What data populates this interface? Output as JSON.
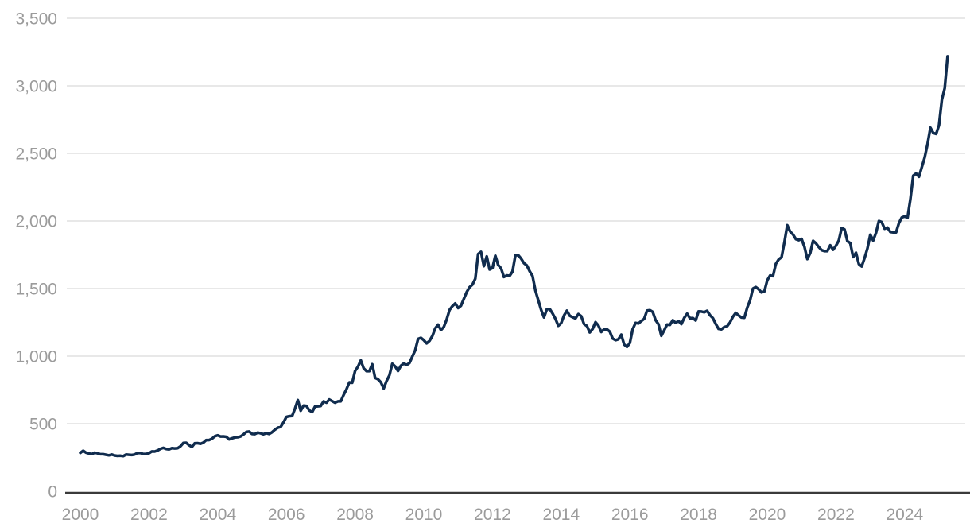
{
  "chart_data": {
    "type": "line",
    "title": "",
    "xlabel": "",
    "ylabel": "",
    "grid": "horizontal",
    "legend": "none",
    "ylim": [
      0,
      3500
    ],
    "xlim_years": [
      2000,
      2025.33
    ],
    "frequency": "monthly",
    "start_year": 2000,
    "start_month": 1,
    "colors": {
      "line": "#102c4e",
      "axis_line": "#3a3a3a",
      "grid_line": "#e8e8e8",
      "tick_label": "#9b9b9b",
      "background": "#ffffff"
    },
    "y_ticks": [
      {
        "value": 0,
        "label": "0"
      },
      {
        "value": 500,
        "label": "500"
      },
      {
        "value": 1000,
        "label": "1,000"
      },
      {
        "value": 1500,
        "label": "1,500"
      },
      {
        "value": 2000,
        "label": "2,000"
      },
      {
        "value": 2500,
        "label": "2,500"
      },
      {
        "value": 3000,
        "label": "3,000"
      },
      {
        "value": 3500,
        "label": "3,500"
      }
    ],
    "x_ticks": [
      {
        "year": 2000,
        "label": "2000"
      },
      {
        "year": 2002,
        "label": "2002"
      },
      {
        "year": 2004,
        "label": "2004"
      },
      {
        "year": 2006,
        "label": "2006"
      },
      {
        "year": 2008,
        "label": "2008"
      },
      {
        "year": 2010,
        "label": "2010"
      },
      {
        "year": 2012,
        "label": "2012"
      },
      {
        "year": 2014,
        "label": "2014"
      },
      {
        "year": 2016,
        "label": "2016"
      },
      {
        "year": 2018,
        "label": "2018"
      },
      {
        "year": 2020,
        "label": "2020"
      },
      {
        "year": 2022,
        "label": "2022"
      },
      {
        "year": 2024,
        "label": "2024"
      }
    ],
    "values": [
      284,
      300,
      286,
      280,
      275,
      286,
      281,
      274,
      274,
      270,
      266,
      272,
      265,
      262,
      263,
      260,
      272,
      270,
      268,
      272,
      284,
      283,
      276,
      276,
      281,
      295,
      294,
      302,
      314,
      321,
      313,
      310,
      319,
      317,
      319,
      333,
      357,
      359,
      341,
      328,
      355,
      356,
      351,
      360,
      379,
      379,
      389,
      407,
      414,
      405,
      406,
      403,
      384,
      392,
      398,
      400,
      405,
      420,
      439,
      442,
      424,
      423,
      434,
      429,
      422,
      430,
      424,
      437,
      456,
      470,
      476,
      510,
      550,
      555,
      557,
      611,
      675,
      596,
      634,
      632,
      598,
      586,
      627,
      629,
      631,
      665,
      655,
      679,
      667,
      655,
      665,
      665,
      713,
      755,
      806,
      803,
      890,
      922,
      968,
      910,
      889,
      889,
      940,
      839,
      829,
      807,
      761,
      816,
      858,
      943,
      924,
      890,
      929,
      946,
      934,
      949,
      997,
      1043,
      1127,
      1135,
      1118,
      1095,
      1113,
      1149,
      1205,
      1233,
      1193,
      1216,
      1271,
      1342,
      1370,
      1390,
      1356,
      1373,
      1424,
      1474,
      1510,
      1529,
      1573,
      1756,
      1772,
      1666,
      1738,
      1641,
      1652,
      1743,
      1674,
      1650,
      1586,
      1597,
      1594,
      1626,
      1745,
      1747,
      1722,
      1688,
      1671,
      1628,
      1593,
      1485,
      1414,
      1343,
      1287,
      1347,
      1349,
      1316,
      1276,
      1225,
      1244,
      1301,
      1336,
      1299,
      1288,
      1279,
      1311,
      1296,
      1237,
      1223,
      1176,
      1201,
      1251,
      1227,
      1179,
      1198,
      1199,
      1181,
      1130,
      1118,
      1125,
      1159,
      1086,
      1068,
      1097,
      1200,
      1246,
      1242,
      1260,
      1276,
      1337,
      1340,
      1327,
      1266,
      1236,
      1151,
      1192,
      1234,
      1231,
      1266,
      1246,
      1260,
      1237,
      1283,
      1314,
      1280,
      1282,
      1264,
      1331,
      1330,
      1325,
      1335,
      1303,
      1281,
      1238,
      1202,
      1198,
      1215,
      1221,
      1250,
      1292,
      1320,
      1301,
      1286,
      1284,
      1359,
      1413,
      1500,
      1511,
      1495,
      1471,
      1479,
      1561,
      1597,
      1592,
      1683,
      1716,
      1732,
      1843,
      1969,
      1922,
      1900,
      1866,
      1858,
      1867,
      1808,
      1718,
      1762,
      1853,
      1835,
      1807,
      1784,
      1777,
      1777,
      1820,
      1787,
      1817,
      1856,
      1948,
      1937,
      1850,
      1837,
      1733,
      1765,
      1681,
      1664,
      1726,
      1797,
      1898,
      1855,
      1913,
      2000,
      1992,
      1943,
      1951,
      1919,
      1916,
      1915,
      1984,
      2026,
      2034,
      2023,
      2160,
      2335,
      2351,
      2327,
      2398,
      2470,
      2570,
      2690,
      2651,
      2644,
      2708,
      2897,
      2983,
      3218
    ]
  }
}
